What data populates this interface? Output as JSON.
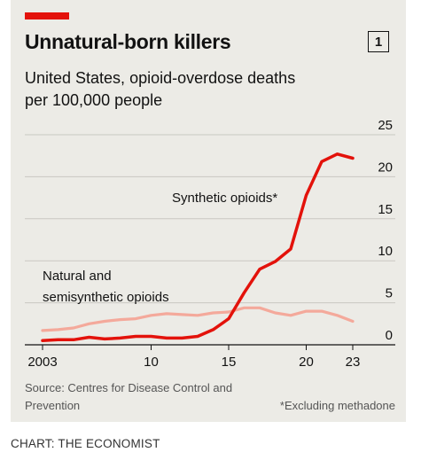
{
  "header": {
    "title": "Unnatural-born killers",
    "badge": "1",
    "subtitle": "United States, opioid-overdose deaths per 100,000 people"
  },
  "colors": {
    "accent": "#e3120b",
    "synthetic": "#e3120b",
    "natural": "#f4a99b",
    "background": "#ecebe6",
    "grid": "#c9c8c2",
    "text": "#121212"
  },
  "chart_data": {
    "type": "line",
    "title": "Unnatural-born killers",
    "subtitle": "United States, opioid-overdose deaths per 100,000 people",
    "xlabel": "",
    "ylabel": "",
    "xlim": [
      2003,
      2023
    ],
    "ylim": [
      0,
      25
    ],
    "y_ticks": [
      0,
      5,
      10,
      15,
      20,
      25
    ],
    "x_tick_labels": [
      {
        "value": 2003,
        "label": "2003"
      },
      {
        "value": 2010,
        "label": "10"
      },
      {
        "value": 2015,
        "label": "15"
      },
      {
        "value": 2020,
        "label": "20"
      },
      {
        "value": 2023,
        "label": "23"
      }
    ],
    "grid": true,
    "series": [
      {
        "name": "Synthetic opioids*",
        "color": "#e3120b",
        "x": [
          2003,
          2004,
          2005,
          2006,
          2007,
          2008,
          2009,
          2010,
          2011,
          2012,
          2013,
          2014,
          2015,
          2016,
          2017,
          2018,
          2019,
          2020,
          2021,
          2022,
          2023
        ],
        "values": [
          0.5,
          0.6,
          0.6,
          0.9,
          0.7,
          0.8,
          1.0,
          1.0,
          0.8,
          0.8,
          1.0,
          1.8,
          3.1,
          6.2,
          9.0,
          9.9,
          11.4,
          17.8,
          21.8,
          22.7,
          22.2
        ]
      },
      {
        "name": "Natural and semisynthetic opioids",
        "color": "#f4a99b",
        "x": [
          2003,
          2004,
          2005,
          2006,
          2007,
          2008,
          2009,
          2010,
          2011,
          2012,
          2013,
          2014,
          2015,
          2016,
          2017,
          2018,
          2019,
          2020,
          2021,
          2022,
          2023
        ],
        "values": [
          1.7,
          1.8,
          2.0,
          2.5,
          2.8,
          3.0,
          3.1,
          3.5,
          3.7,
          3.6,
          3.5,
          3.8,
          3.9,
          4.4,
          4.4,
          3.8,
          3.5,
          4.0,
          4.0,
          3.5,
          2.8
        ]
      }
    ],
    "annotations": [
      "Synthetic opioids*",
      "Natural and semisynthetic opioids"
    ]
  },
  "labels": {
    "synthetic_label": "Synthetic opioids*",
    "natural_label_line1": "Natural and",
    "natural_label_line2": "semisynthetic opioids"
  },
  "footer": {
    "source": "Source: Centres for Disease Control and Prevention",
    "footnote": "*Excluding methadone",
    "credit": "CHART: THE ECONOMIST"
  }
}
